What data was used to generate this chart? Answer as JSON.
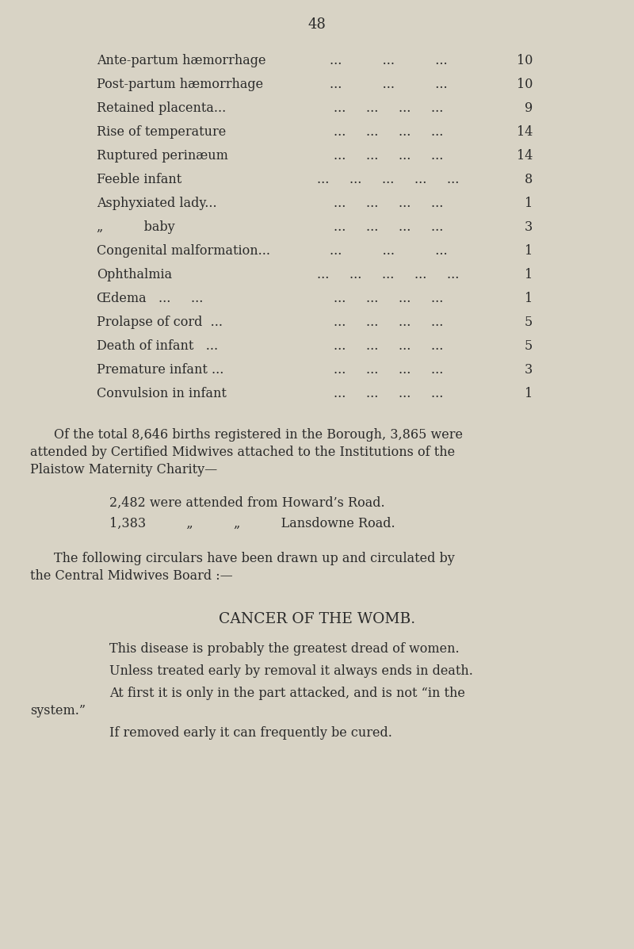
{
  "page_number": "48",
  "background_color": "#d8d3c5",
  "text_color": "#2a2a2a",
  "table_rows": [
    {
      "label": "Ante-partum hæmorrhage",
      "dots": "...          ...          ...",
      "value": "10"
    },
    {
      "label": "Post-partum hæmorrhage",
      "dots": "...          ...          ...",
      "value": "10"
    },
    {
      "label": "Retained placenta...",
      "dots": "...     ...     ...     ...",
      "value": "9"
    },
    {
      "label": "Rise of temperature",
      "dots": "...     ...     ...     ...",
      "value": "14"
    },
    {
      "label": "Ruptured perinæum",
      "dots": "...     ...     ...     ...",
      "value": "14"
    },
    {
      "label": "Feeble infant",
      "dots": "...     ...     ...     ...     ...",
      "value": "8"
    },
    {
      "label": "Asphyxiated lady...",
      "dots": "...     ...     ...     ...",
      "value": "1"
    },
    {
      "label": "„          baby",
      "dots": "...     ...     ...     ...",
      "value": "3"
    },
    {
      "label": "Congenital malformation...",
      "dots": "...          ...          ...",
      "value": "1"
    },
    {
      "label": "Ophthalmia",
      "dots": "...     ...     ...     ...     ...",
      "value": "1"
    },
    {
      "label": "Œdema   ...     ...",
      "dots": "...     ...     ...     ...",
      "value": "1"
    },
    {
      "label": "Prolapse of cord  ...",
      "dots": "...     ...     ...     ...",
      "value": "5"
    },
    {
      "label": "Death of infant   ...",
      "dots": "...     ...     ...     ...",
      "value": "5"
    },
    {
      "label": "Premature infant ...",
      "dots": "...     ...     ...     ...",
      "value": "3"
    },
    {
      "label": "Convulsion in infant",
      "dots": "...     ...     ...     ...",
      "value": "1"
    }
  ],
  "para1_line1": "Of the total 8,646 births registered in the Borough, 3,865 were",
  "para1_line2": "attended by Certified Midwives attached to the Institutions of the",
  "para1_line3": "Plaistow Maternity Charity—",
  "para2_line1": "2,482 were attended from Howard’s Road.",
  "para2_line2": "1,383          „          „          Lansdowne Road.",
  "para3_line1": "The following circulars have been drawn up and circulated by",
  "para3_line2": "the Central Midwives Board :—",
  "heading": "CANCER OF THE WOMB.",
  "bullet1": "This disease is probably the greatest dread of women.",
  "bullet2": "Unless treated early by removal it always ends in death.",
  "bullet3_line1": "At first it is only in the part attacked, and is not “in the",
  "bullet3_line2": "system.”",
  "bullet4": "If removed early it can frequently be cured.",
  "font_size_body": 11.5,
  "font_size_heading": 13.5,
  "font_size_page_num": 13
}
